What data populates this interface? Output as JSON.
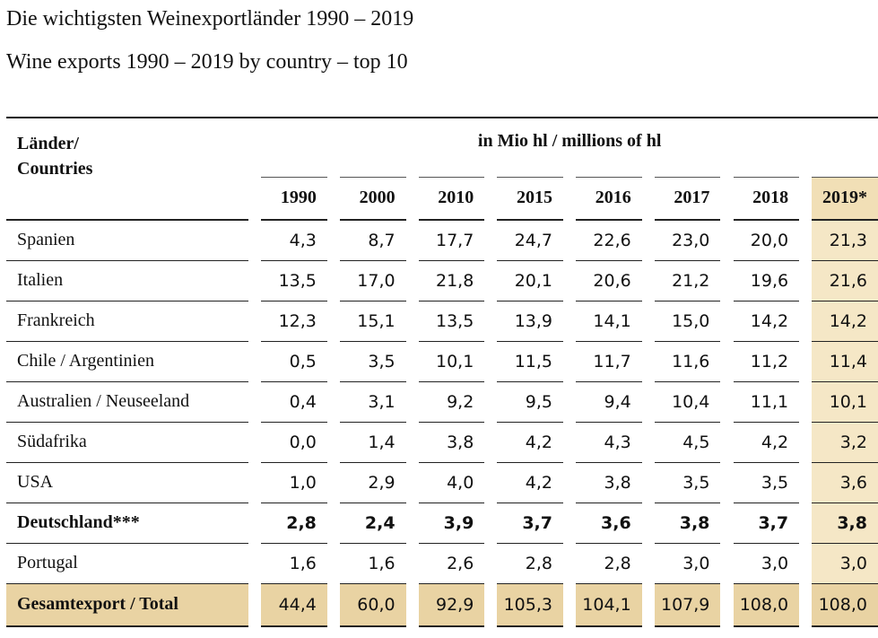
{
  "title_de": "Die wichtigsten Weinexportländer 1990 – 2019",
  "title_en": "Wine exports 1990 – 2019 by country – top 10",
  "table": {
    "label_col": "Länder/\nCountries",
    "label_col_line1": "Länder/",
    "label_col_line2": "Countries",
    "unit": "in Mio hl / millions of hl",
    "years": [
      "1990",
      "2000",
      "2010",
      "2015",
      "2016",
      "2017",
      "2018",
      "2019*"
    ],
    "highlight_color": "#f5e7c6",
    "total_color": "#e9d3a3",
    "rows": [
      {
        "country": "Spanien",
        "bold": false,
        "values": [
          "4,3",
          "8,7",
          "17,7",
          "24,7",
          "22,6",
          "23,0",
          "20,0",
          "21,3"
        ]
      },
      {
        "country": "Italien",
        "bold": false,
        "values": [
          "13,5",
          "17,0",
          "21,8",
          "20,1",
          "20,6",
          "21,2",
          "19,6",
          "21,6"
        ]
      },
      {
        "country": "Frankreich",
        "bold": false,
        "values": [
          "12,3",
          "15,1",
          "13,5",
          "13,9",
          "14,1",
          "15,0",
          "14,2",
          "14,2"
        ]
      },
      {
        "country": "Chile / Argentinien",
        "bold": false,
        "values": [
          "0,5",
          "3,5",
          "10,1",
          "11,5",
          "11,7",
          "11,6",
          "11,2",
          "11,4"
        ]
      },
      {
        "country": "Australien / Neuseeland",
        "bold": false,
        "values": [
          "0,4",
          "3,1",
          "9,2",
          "9,5",
          "9,4",
          "10,4",
          "11,1",
          "10,1"
        ]
      },
      {
        "country": "Südafrika",
        "bold": false,
        "values": [
          "0,0",
          "1,4",
          "3,8",
          "4,2",
          "4,3",
          "4,5",
          "4,2",
          "3,2"
        ]
      },
      {
        "country": "USA",
        "bold": false,
        "values": [
          "1,0",
          "2,9",
          "4,0",
          "4,2",
          "3,8",
          "3,5",
          "3,5",
          "3,6"
        ]
      },
      {
        "country": "Deutschland***",
        "bold": true,
        "values": [
          "2,8",
          "2,4",
          "3,9",
          "3,7",
          "3,6",
          "3,8",
          "3,7",
          "3,8"
        ]
      },
      {
        "country": "Portugal",
        "bold": false,
        "values": [
          "1,6",
          "1,6",
          "2,6",
          "2,8",
          "2,8",
          "3,0",
          "3,0",
          "3,0"
        ]
      }
    ],
    "total": {
      "label": "Gesamtexport / Total",
      "values": [
        "44,4",
        "60,0",
        "92,9",
        "105,3",
        "104,1",
        "107,9",
        "108,0",
        "108,0"
      ]
    }
  }
}
